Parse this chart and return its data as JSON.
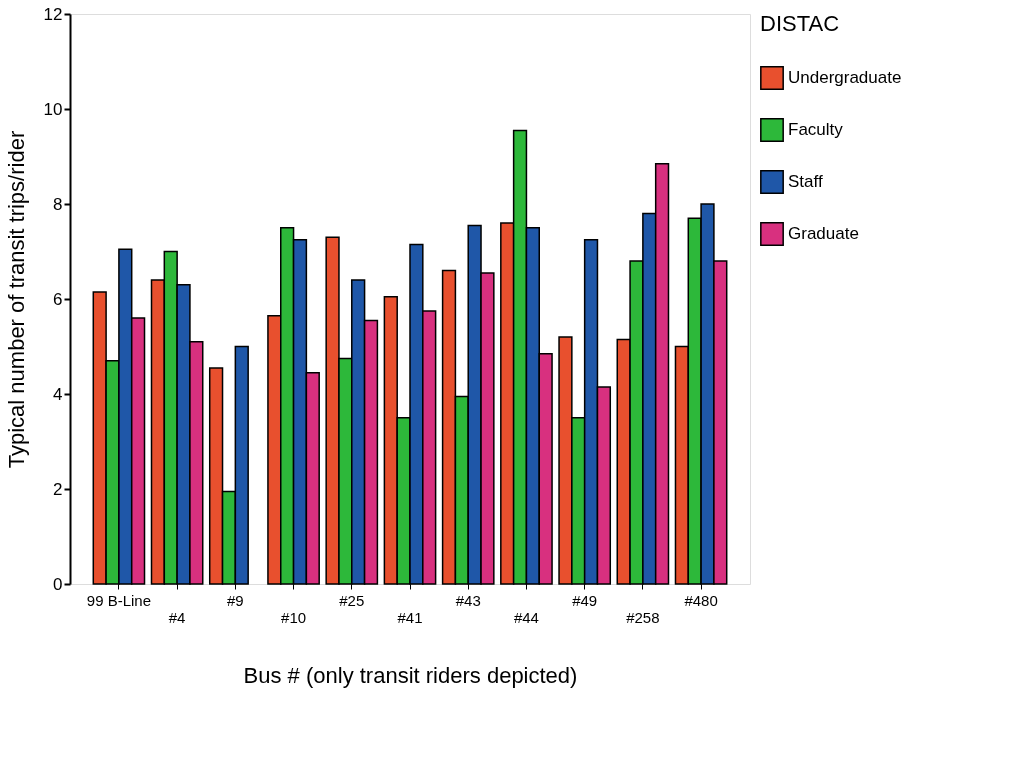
{
  "chart_data": {
    "type": "bar",
    "xlabel": "Bus # (only  transit riders depicted)",
    "ylabel": "Typical number of transit trips/rider",
    "legend_title": "DISTAC",
    "categories": [
      "99 B-Line",
      "#4",
      "#9",
      "#10",
      "#25",
      "#41",
      "#43",
      "#44",
      "#49",
      "#258",
      "#480"
    ],
    "series": [
      {
        "name": "Undergraduate",
        "color": "#e8502e",
        "values": [
          6.15,
          6.4,
          4.55,
          5.65,
          7.3,
          6.05,
          6.6,
          7.6,
          5.2,
          5.15,
          5.0
        ]
      },
      {
        "name": "Faculty",
        "color": "#2db83a",
        "values": [
          4.7,
          7.0,
          1.95,
          7.5,
          4.75,
          3.5,
          3.95,
          9.55,
          3.5,
          6.8,
          7.7
        ]
      },
      {
        "name": "Staff",
        "color": "#1f57a8",
        "values": [
          7.05,
          6.3,
          5.0,
          7.25,
          6.4,
          7.15,
          7.55,
          7.5,
          7.25,
          7.8,
          8.0
        ]
      },
      {
        "name": "Graduate",
        "color": "#d8307f",
        "values": [
          5.6,
          5.1,
          null,
          4.45,
          5.55,
          5.75,
          6.55,
          4.85,
          4.15,
          8.85,
          6.8
        ]
      }
    ],
    "ylim": [
      0,
      12
    ],
    "yticks": [
      0,
      2,
      4,
      6,
      8,
      10,
      12
    ],
    "grid": false,
    "legend": "right"
  }
}
